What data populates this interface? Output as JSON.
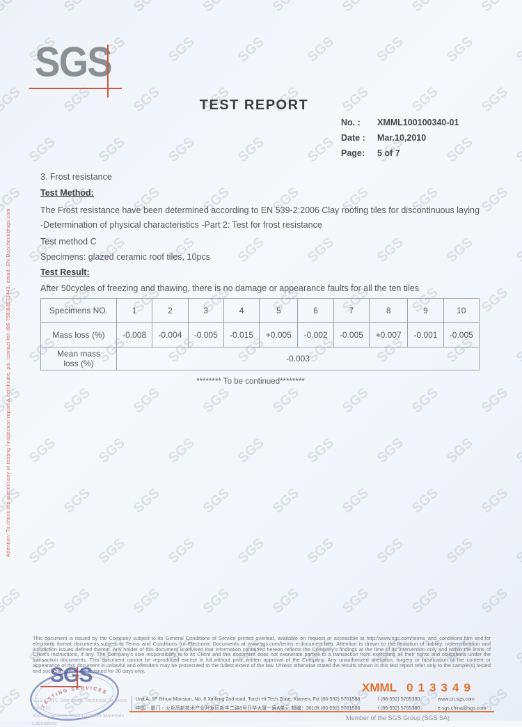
{
  "page": {
    "watermark_text": "SGS",
    "side_note": "Attention: To check the authenticity of testing /inspection report & certificate, pls. contact tel: (86-755)83071443, email: CN.Doccheck@sgs.com"
  },
  "header": {
    "logo_text": "SGS",
    "title": "TEST REPORT",
    "meta_rows": [
      {
        "label": "No.   :",
        "value": "XMML100100340-01"
      },
      {
        "label": "Date :",
        "value": "Mar.10,2010"
      },
      {
        "label": "Page:",
        "value": "5 of 7"
      }
    ]
  },
  "body": {
    "section_heading": "3. Frost resistance",
    "test_method_label": "Test Method:",
    "method_paragraph": "The Frost resistance have been determined according to EN 539-2:2006 Clay roofing tiles for discontinuous laying -Determination of physical characteristics -Part 2: Test for frost resistance",
    "method_line": "Test method C",
    "specimens_line": "Specimens: glazed ceramic roof tiles, 10pcs",
    "test_result_label": "Test Result:",
    "result_line": "After 50cycles of freezing and thawing, there is no damage or appearance faults for all the ten tiles",
    "to_be_continued": "******** To be continued********"
  },
  "table": {
    "header_label": "Specimens NO.",
    "specimen_numbers": [
      "1",
      "2",
      "3",
      "4",
      "5",
      "6",
      "7",
      "8",
      "9",
      "10"
    ],
    "mass_loss_label": "Mass loss (%)",
    "mass_loss_values": [
      "-0.008",
      "-0.004",
      "-0.005",
      "-0.015",
      "+0.005",
      "-0.002",
      "-0.005",
      "+0.007",
      "-0.001",
      "-0.005"
    ],
    "mean_label_line1": "Mean mass",
    "mean_label_line2": "loss (%)",
    "mean_value": "-0.003"
  },
  "disclaimer": {
    "text": "This document is issued by the Company subject to its General Conditions of Service printed overleaf, available on request or accessible at http://www.sgs.com/terms_and_conditions.htm and,for electronic format documents,subject to Terms and Conditions for Electronic Documents at www.sgs.com/terms e-document.htm. Attention is drawn to the limitation of liability, indemnification and jurisdiction issues defined therein. Any holder of this document is advised that information contained hereon reflects the Company's findings at the time of its intervention only and within the limits of Client's instructions, if any. The Company's sole responsibility is to its Client and this document does not exonerate parties to a transaction from exercising all their rights and obligations under the transaction documents. This document cannot be reproduced except in full,without prior written approval of the Company. Any unauthorized alteration, forgery or falsification of the content or appearance of this document is unlawful and offenders may be prosecuted to the fullest extent of the law. Unless otherwise stated the results shown in this test report refer only to the sample(s) tested and such sample(s) are retained for 30 days only."
  },
  "footer": {
    "logo_text": "SGS",
    "stamp_text": "TESTING SERVICES",
    "company_line1": "SGS-CSTC Standards Technical Services Co., Ltd.",
    "company_line2": "Xiamen Branch Testing Center Materials Laboratory",
    "report_stamp_prefix": "XMML",
    "report_stamp_number": "013349",
    "address_rows": [
      {
        "address": "Unit A, 1F Rihua Mansion, No. 8 Xinfeng 2nd road, Torch Hi-Tech Zone, Xiamen, Fujian Province, China 361006",
        "tel": "t  (86-592) 5761588",
        "fax": "f  (86-592) 5765380",
        "contact": "www.cn.sgs.com"
      },
      {
        "address": "中国・厦门・火炬高新技术产业开发区新丰二路8号日华大厦一层A单元  邮编：361006",
        "tel": "t  (86-592) 5761588",
        "fax": "f  (86-592) 5765380",
        "contact": "e  sgs.china@sgs.com"
      }
    ],
    "member_line": "Member of the SGS Group (SGS SA)"
  },
  "colors": {
    "accent_red": "#cf5740",
    "orange_stamp": "#e2702d",
    "logo_gray": "#8b9095",
    "stamp_blue": "#3b4fa5",
    "paper_tint": "#f2f5f9"
  }
}
